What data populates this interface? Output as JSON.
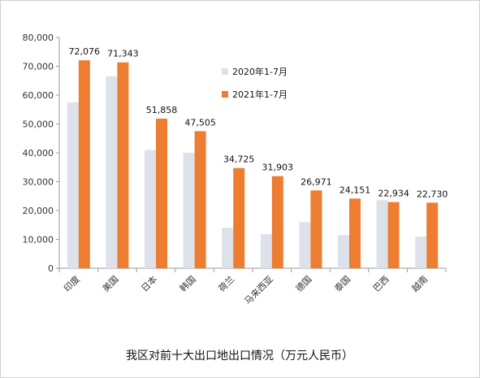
{
  "chart_data": {
    "type": "bar",
    "title": "我区对前十大出口地出口情况（万元人民币）",
    "categories": [
      "印度",
      "美国",
      "日本",
      "韩国",
      "荷兰",
      "马来西亚",
      "德国",
      "泰国",
      "巴西",
      "越南"
    ],
    "series": [
      {
        "name": "2020年1-7月",
        "color": "#dde2ea",
        "values": [
          57500,
          66500,
          41000,
          40000,
          14000,
          11800,
          16000,
          11500,
          23600,
          11000
        ],
        "labels_shown": false
      },
      {
        "name": "2021年1-7月",
        "color": "#ed7d31",
        "values": [
          72076,
          71343,
          51858,
          47505,
          34725,
          31903,
          26971,
          24151,
          22934,
          22730
        ],
        "data_labels": [
          "72,076",
          "71,343",
          "51,858",
          "47,505",
          "34,725",
          "31,903",
          "26,971",
          "24,151",
          "22,934",
          "22,730"
        ],
        "labels_shown": true
      }
    ],
    "ylim": [
      0,
      80000
    ],
    "yticks": [
      0,
      10000,
      20000,
      30000,
      40000,
      50000,
      60000,
      70000,
      80000
    ],
    "ytick_labels": [
      "0",
      "10,000",
      "20,000",
      "30,000",
      "40,000",
      "50,000",
      "60,000",
      "70,000",
      "80,000"
    ],
    "xlabel": "",
    "ylabel": "",
    "grid": false,
    "legend_position": "top-right inside plot"
  }
}
